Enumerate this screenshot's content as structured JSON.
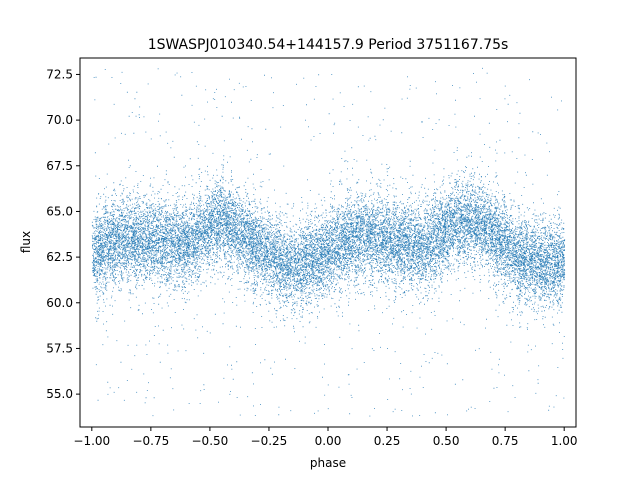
{
  "chart_data": {
    "type": "scatter",
    "title": "1SWASPJ010340.54+144157.9 Period 3751167.75s",
    "xlabel": "phase",
    "ylabel": "flux",
    "xlim": [
      -1.05,
      1.05
    ],
    "ylim": [
      53.2,
      73.4
    ],
    "xticks": [
      -1.0,
      -0.75,
      -0.5,
      -0.25,
      0.0,
      0.25,
      0.5,
      0.75,
      1.0
    ],
    "xtick_labels": [
      "−1.00",
      "−0.75",
      "−0.50",
      "−0.25",
      "0.00",
      "0.25",
      "0.50",
      "0.75",
      "1.00"
    ],
    "yticks": [
      55.0,
      57.5,
      60.0,
      62.5,
      65.0,
      67.5,
      70.0,
      72.5
    ],
    "ytick_labels": [
      "55.0",
      "57.5",
      "60.0",
      "62.5",
      "65.0",
      "67.5",
      "70.0",
      "72.5"
    ],
    "grid": false,
    "point_color": "#1f77b4",
    "point_count_estimate": 20000,
    "mean_flux_profile": {
      "x": [
        -1.0,
        -0.9,
        -0.75,
        -0.6,
        -0.45,
        -0.3,
        -0.15,
        0.0,
        0.1,
        0.25,
        0.4,
        0.55,
        0.65,
        0.8,
        0.9,
        1.0
      ],
      "flux": [
        62.6,
        63.4,
        63.5,
        63.2,
        64.6,
        63.0,
        61.9,
        62.8,
        63.6,
        63.5,
        63.0,
        64.5,
        64.3,
        62.6,
        62.2,
        62.3
      ]
    },
    "scatter_amplitude": 2.2,
    "outlier_range": [
      53.8,
      73.0
    ]
  }
}
